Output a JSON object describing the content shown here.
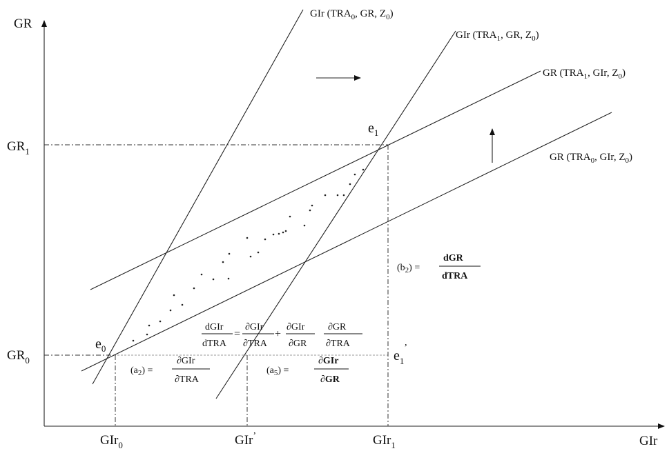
{
  "axes": {
    "y_label": "GR",
    "x_label": "GIr"
  },
  "y_ticks": {
    "gr1": {
      "base": "GR",
      "sub": "1"
    },
    "gr0": {
      "base": "GR",
      "sub": "0"
    }
  },
  "x_ticks": {
    "gir0": {
      "base": "GIr",
      "sub": "0"
    },
    "gir_prime": {
      "base": "GIr",
      "sup": "’"
    },
    "gir1": {
      "base": "GIr",
      "sub": "1"
    }
  },
  "curves": {
    "gir_tra0": {
      "pre": "GIr (TRA",
      "s1": "0",
      "mid": ", GR, Z",
      "s2": "0",
      "post": ")"
    },
    "gir_tra1": {
      "pre": "GIr (TRA",
      "s1": "1",
      "mid": ", GR, Z",
      "s2": "0",
      "post": ")"
    },
    "gr_tra1": {
      "pre": "GR (TRA",
      "s1": "1",
      "mid": ", GIr, Z",
      "s2": "0",
      "post": ")"
    },
    "gr_tra0": {
      "pre": "GR (TRA",
      "s1": "0",
      "mid": ", GIr, Z",
      "s2": "0",
      "post": ")"
    }
  },
  "points": {
    "e0": {
      "base": "e",
      "sub": "0"
    },
    "e1": {
      "base": "e",
      "sub": "1"
    },
    "e1_prime": {
      "base": "e",
      "sub": "1",
      "sup": "’"
    }
  },
  "equations": {
    "total": {
      "lhs_num": "dGIr",
      "lhs_den": "dTRA",
      "eq": "=",
      "t1_num": "∂GIr",
      "t1_den": "∂TRA",
      "plus": "+",
      "t2_num": "∂GIr",
      "t2_den": "∂GR",
      "t3_num": "∂GR",
      "t3_den": "∂TRA"
    },
    "a2": {
      "label_pre": "(a",
      "label_sub": "2",
      "label_post": ") =",
      "num": "∂GIr",
      "den": "∂TRA"
    },
    "a5": {
      "label_pre": "(a",
      "label_sub": "5",
      "label_post": ") =",
      "num": "∂GIr",
      "den": "∂GR"
    },
    "b2": {
      "label_pre": "(b",
      "label_sub": "2",
      "label_post": ") =",
      "num": "dGR",
      "den": "dTRA"
    }
  },
  "shift_arrows": [
    "right-arrow",
    "up-arrow"
  ]
}
